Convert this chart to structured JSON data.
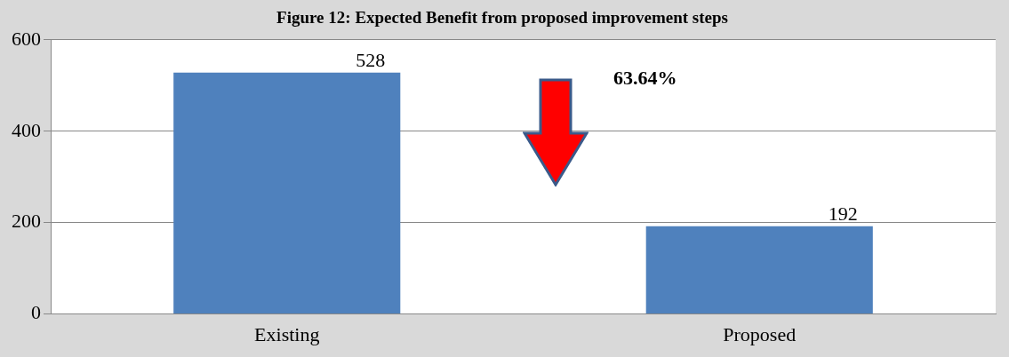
{
  "chart_data": {
    "type": "bar",
    "title": "Figure 12: Expected Benefit from proposed improvement steps",
    "categories": [
      "Existing",
      "Proposed"
    ],
    "values": [
      528,
      192
    ],
    "color": "#4f81bd",
    "ylim": [
      0,
      600
    ],
    "yticks": [
      0,
      200,
      400,
      600
    ],
    "grid": "y",
    "data_labels": true,
    "annotations": [
      "63.64%"
    ]
  }
}
